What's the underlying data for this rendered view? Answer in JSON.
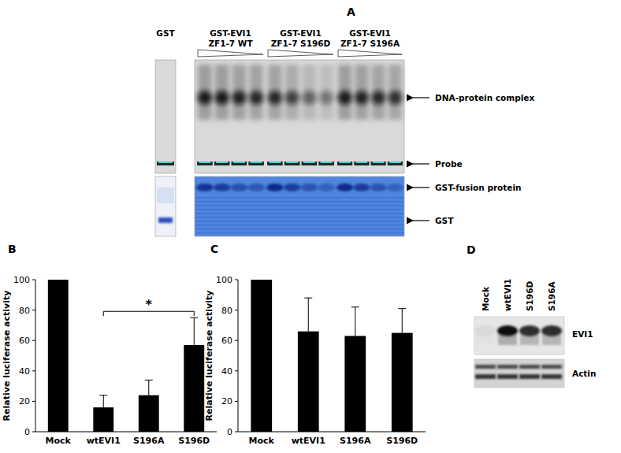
{
  "chart_data": [
    {
      "type": "bar",
      "title": "B",
      "y_label": "Relative luciferase activity",
      "categories": [
        "Mock",
        "wtEVI1",
        "S196A",
        "S196D"
      ],
      "values": [
        100,
        16,
        24,
        57
      ],
      "errors": [
        null,
        8,
        10,
        18
      ],
      "color": "#000000",
      "ylim": [
        0,
        100
      ],
      "yticks": [
        0,
        20,
        40,
        60,
        80,
        100
      ],
      "annotations": [
        {
          "text": "*",
          "categories": [
            "wtEVI1",
            "S196D"
          ]
        }
      ]
    },
    {
      "type": "bar",
      "title": "C",
      "y_label": "Relative luciferase activity",
      "categories": [
        "Mock",
        "wtEVI1",
        "S196A",
        "S196D"
      ],
      "values": [
        100,
        66,
        63,
        65
      ],
      "errors": [
        null,
        22,
        19,
        16
      ],
      "color": "#000000",
      "ylim": [
        0,
        100
      ],
      "yticks": [
        0,
        20,
        40,
        60,
        80,
        100
      ]
    }
  ],
  "panel_a": {
    "label": "A",
    "lanes": [
      [
        "GST"
      ],
      [
        "GST-EVI1",
        "ZF1-7 WT"
      ],
      [
        "GST-EVI1",
        "ZF1-7 S196D"
      ],
      [
        "GST-EVI1",
        "ZF1-7 S196A"
      ]
    ],
    "gel_bands": [
      "DNA-protein complex",
      "Probe"
    ],
    "stain_bands": [
      "GST-fusion protein",
      "GST"
    ]
  },
  "panel_d": {
    "label": "D",
    "lanes": [
      "Mock",
      "wtEVI1",
      "S196D",
      "S196A"
    ],
    "bands": [
      "EVI1",
      "Actin"
    ]
  }
}
